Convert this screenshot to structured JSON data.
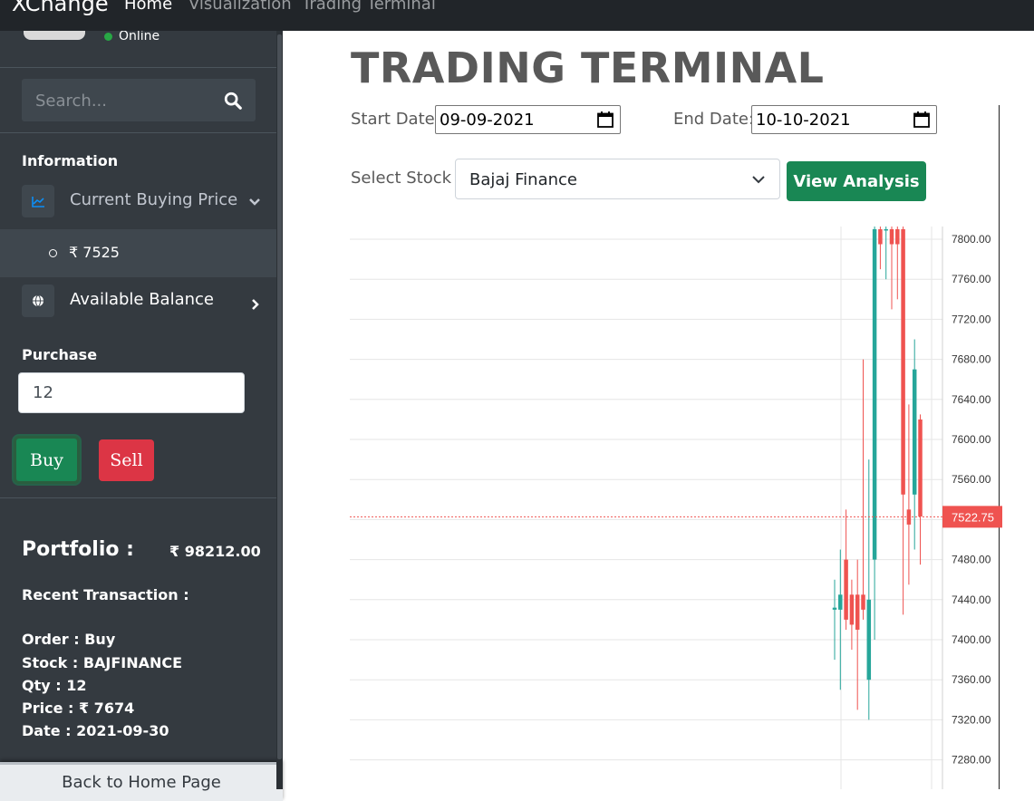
{
  "navbar": {
    "brand": "XChange",
    "links": [
      {
        "label": "Home",
        "active": true
      },
      {
        "label": "Visualization",
        "active": false
      },
      {
        "label": "Trading Terminal",
        "active": false
      }
    ]
  },
  "sidebar": {
    "status": "Online",
    "search": {
      "placeholder": "Search..."
    },
    "information_header": "Information",
    "items": [
      {
        "label": "Current Buying Price",
        "icon": "chart-line-icon",
        "expanded": true,
        "subitems": [
          "₹ 7525"
        ]
      },
      {
        "label": "Available Balance",
        "icon": "globe-icon",
        "expanded": false
      }
    ],
    "purchase_header": "Purchase",
    "purchase_value": "12",
    "buy_label": "Buy",
    "sell_label": "Sell",
    "portfolio_label": "Portfolio :",
    "portfolio_value": "₹ 98212.00",
    "recent_title": "Recent Transaction :",
    "transaction": {
      "order": "Order : Buy",
      "stock": "Stock : BAJFINANCE",
      "qty": "Qty : 12",
      "price": "Price : ₹ 7674",
      "date": "Date : 2021-09-30"
    },
    "back_label": "Back to Home Page"
  },
  "main": {
    "title": "TRADING TERMINAL",
    "start_label": "Start Date:",
    "start_value": "09-09-2021",
    "end_label": "End Date:",
    "end_value": "10-10-2021",
    "select_label": "Select Stock :",
    "select_value": "Bajaj Finance",
    "analysis_label": "View Analysis"
  },
  "colors": {
    "up": "#26a69a",
    "down": "#ef5350",
    "sidebar": "#343a40",
    "button_green": "#198754",
    "button_red": "#dc3545"
  },
  "chart_data": {
    "type": "candlestick",
    "ticks": [
      "7800.00",
      "7760.00",
      "7720.00",
      "7680.00",
      "7640.00",
      "7600.00",
      "7560.00",
      "7520.00",
      "7480.00",
      "7440.00",
      "7400.00",
      "7360.00",
      "7320.00",
      "7280.00"
    ],
    "last_price_label": "7522.75",
    "last_price": 7522.75,
    "candles": [
      {
        "open": 7430,
        "close": 7432,
        "high": 7460,
        "low": 7380
      },
      {
        "open": 7430,
        "close": 7445,
        "high": 7490,
        "low": 7350
      },
      {
        "open": 7480,
        "close": 7420,
        "high": 7530,
        "low": 7410
      },
      {
        "open": 7445,
        "close": 7415,
        "high": 7460,
        "low": 7390
      },
      {
        "open": 7445,
        "close": 7410,
        "high": 7480,
        "low": 7330
      },
      {
        "open": 7445,
        "close": 7430,
        "high": 7680,
        "low": 7420
      },
      {
        "open": 7360,
        "close": 7440,
        "high": 7580,
        "low": 7320
      },
      {
        "open": 7480,
        "close": 7810,
        "high": 7830,
        "low": 7400
      },
      {
        "open": 7810,
        "close": 7795,
        "high": 7820,
        "low": 7770
      },
      {
        "open": 7810,
        "close": 7810,
        "high": 7830,
        "low": 7760
      },
      {
        "open": 7810,
        "close": 7795,
        "high": 7820,
        "low": 7730
      },
      {
        "open": 7810,
        "close": 7795,
        "high": 7820,
        "low": 7740
      },
      {
        "open": 7810,
        "close": 7545,
        "high": 7820,
        "low": 7425
      },
      {
        "open": 7530,
        "close": 7515,
        "high": 7635,
        "low": 7455
      },
      {
        "open": 7545,
        "close": 7670,
        "high": 7700,
        "low": 7490
      },
      {
        "open": 7620,
        "close": 7523,
        "high": 7625,
        "low": 7475
      }
    ]
  }
}
